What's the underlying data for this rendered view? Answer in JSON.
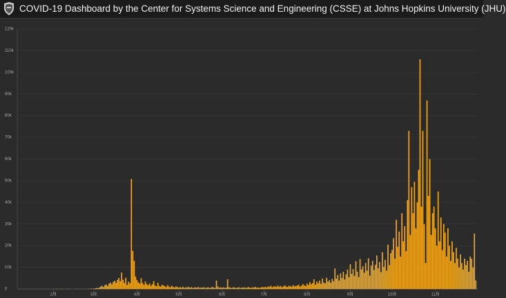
{
  "header": {
    "title": "COVID-19 Dashboard by the Center for Systems Science and Engineering (CSSE) at Johns Hopkins University (JHU)"
  },
  "chart_data": {
    "type": "bar",
    "color": "#f2a81d",
    "grid": true,
    "ylim": [
      0,
      120000
    ],
    "yticks": [
      0,
      {
        "value": 10000,
        "label": "10k"
      },
      {
        "value": 20000,
        "label": "20k"
      },
      {
        "value": 30000,
        "label": "30k"
      },
      {
        "value": 40000,
        "label": "40k"
      },
      {
        "value": 50000,
        "label": "50k"
      },
      {
        "value": 60000,
        "label": "60k"
      },
      {
        "value": 70000,
        "label": "70k"
      },
      {
        "value": 80000,
        "label": "80k"
      },
      {
        "value": 90000,
        "label": "90k"
      },
      {
        "value": 100000,
        "label": "100k"
      },
      {
        "value": 110000,
        "label": "110k"
      },
      {
        "value": 120000,
        "label": "120k"
      }
    ],
    "categories": [
      null,
      null,
      null,
      null,
      null,
      null,
      null,
      null,
      null,
      null,
      "2月",
      null,
      null,
      null,
      null,
      null,
      null,
      null,
      null,
      null,
      null,
      null,
      null,
      null,
      null,
      null,
      null,
      null,
      null,
      null,
      null,
      null,
      null,
      null,
      null,
      null,
      null,
      null,
      null,
      "3月",
      null,
      null,
      null,
      null,
      null,
      null,
      null,
      null,
      null,
      null,
      null,
      null,
      null,
      null,
      null,
      null,
      null,
      null,
      null,
      null,
      null,
      null,
      null,
      null,
      null,
      null,
      null,
      null,
      null,
      null,
      "4月",
      null,
      null,
      null,
      null,
      null,
      null,
      null,
      null,
      null,
      null,
      null,
      null,
      null,
      null,
      null,
      null,
      null,
      null,
      null,
      null,
      null,
      null,
      null,
      null,
      null,
      null,
      null,
      null,
      null,
      "5月",
      null,
      null,
      null,
      null,
      null,
      null,
      null,
      null,
      null,
      null,
      null,
      null,
      null,
      null,
      null,
      null,
      null,
      null,
      null,
      null,
      null,
      null,
      null,
      null,
      null,
      null,
      null,
      null,
      null,
      null,
      "6月",
      null,
      null,
      null,
      null,
      null,
      null,
      null,
      null,
      null,
      null,
      null,
      null,
      null,
      null,
      null,
      null,
      null,
      null,
      null,
      null,
      null,
      null,
      null,
      null,
      null,
      null,
      null,
      null,
      null,
      "7月",
      null,
      null,
      null,
      null,
      null,
      null,
      null,
      null,
      null,
      null,
      null,
      null,
      null,
      null,
      null,
      null,
      null,
      null,
      null,
      null,
      null,
      null,
      null,
      null,
      null,
      null,
      null,
      null,
      null,
      null,
      "8月",
      null,
      null,
      null,
      null,
      null,
      null,
      null,
      null,
      null,
      null,
      null,
      null,
      null,
      null,
      null,
      null,
      null,
      null,
      null,
      null,
      null,
      null,
      null,
      null,
      null,
      null,
      null,
      null,
      null,
      null,
      "9月",
      null,
      null,
      null,
      null,
      null,
      null,
      null,
      null,
      null,
      null,
      null,
      null,
      null,
      null,
      null,
      null,
      null,
      null,
      null,
      null,
      null,
      null,
      null,
      null,
      null,
      null,
      null,
      null,
      null,
      "10月",
      null,
      null,
      null,
      null,
      null,
      null,
      null,
      null,
      null,
      null,
      null,
      null,
      null,
      null,
      null,
      null,
      null,
      null,
      null,
      null,
      null,
      null,
      null,
      null,
      null,
      null,
      null,
      null,
      null,
      null,
      "11月",
      null,
      null,
      null,
      null,
      null,
      null,
      null,
      null,
      null,
      null,
      null,
      null,
      null,
      null,
      null,
      null,
      null,
      null,
      null,
      null,
      null,
      null,
      null,
      null,
      null,
      null,
      null,
      null,
      null
    ],
    "values": [
      0,
      0,
      0,
      0,
      0,
      0,
      0,
      0,
      0,
      0,
      0,
      0,
      100,
      0,
      0,
      0,
      100,
      0,
      0,
      0,
      0,
      100,
      0,
      0,
      0,
      0,
      0,
      100,
      0,
      0,
      0,
      0,
      100,
      0,
      0,
      100,
      0,
      200,
      100,
      200,
      300,
      500,
      400,
      700,
      1200,
      1500,
      900,
      1800,
      2100,
      1400,
      2500,
      3000,
      2200,
      3300,
      3800,
      2900,
      4200,
      5100,
      3600,
      7600,
      4300,
      2800,
      5200,
      1900,
      3400,
      2700,
      50800,
      17600,
      13000,
      5800,
      4200,
      3100,
      2500,
      5000,
      2800,
      1900,
      3500,
      2300,
      1800,
      2600,
      1500,
      2200,
      3600,
      1700,
      1200,
      2900,
      1400,
      1100,
      2000,
      1600,
      1300,
      900,
      1800,
      1100,
      800,
      1500,
      1000,
      700,
      1200,
      900,
      700,
      900,
      600,
      1100,
      500,
      800,
      700,
      1000,
      600,
      900,
      500,
      700,
      800,
      600,
      1000,
      500,
      700,
      600,
      900,
      400,
      700,
      800,
      500,
      600,
      1000,
      700,
      500,
      3900,
      1200,
      600,
      800,
      600,
      800,
      500,
      700,
      4500,
      900,
      600,
      500,
      800,
      700,
      500,
      600,
      900,
      400,
      700,
      600,
      800,
      500,
      700,
      900,
      600,
      500,
      800,
      700,
      1000,
      600,
      700,
      500,
      800,
      900,
      800,
      1000,
      700,
      1200,
      900,
      1500,
      800,
      1100,
      1300,
      900,
      1600,
      1000,
      1400,
      800,
      1200,
      1700,
      1100,
      900,
      1500,
      1300,
      1000,
      1800,
      1200,
      1400,
      1600,
      2000,
      1100,
      1500,
      2300,
      1700,
      1300,
      2500,
      1800,
      3200,
      2200,
      2800,
      4500,
      2000,
      3500,
      2700,
      3900,
      2400,
      4800,
      3000,
      2600,
      5200,
      3400,
      4100,
      2900,
      4700,
      3600,
      9500,
      4800,
      6500,
      3900,
      7200,
      5100,
      8000,
      4400,
      6800,
      9000,
      5500,
      11500,
      7000,
      9200,
      6000,
      12800,
      8000,
      5500,
      13800,
      9000,
      10500,
      7500,
      12000,
      8500,
      14200,
      6200,
      10800,
      13000,
      8800,
      11200,
      15500,
      9500,
      12500,
      7800,
      17000,
      10200,
      13500,
      8500,
      20500,
      11000,
      16500,
      18000,
      23500,
      14000,
      32000,
      19500,
      26500,
      15000,
      35000,
      22000,
      29000,
      17500,
      41000,
      73000,
      25000,
      47000,
      35000,
      49500,
      28000,
      40000,
      55000,
      106000,
      38000,
      73000,
      30000,
      12000,
      87000,
      43000,
      60000,
      25000,
      35000,
      38000,
      28000,
      20000,
      45000,
      22000,
      33000,
      18000,
      30000,
      26000,
      15000,
      28000,
      20000,
      13000,
      22000,
      17000,
      12000,
      19000,
      14000,
      10000,
      16000,
      12000,
      9000,
      14000,
      11000,
      13000,
      8000,
      15000,
      14000,
      10000,
      25600,
      4000
    ]
  }
}
